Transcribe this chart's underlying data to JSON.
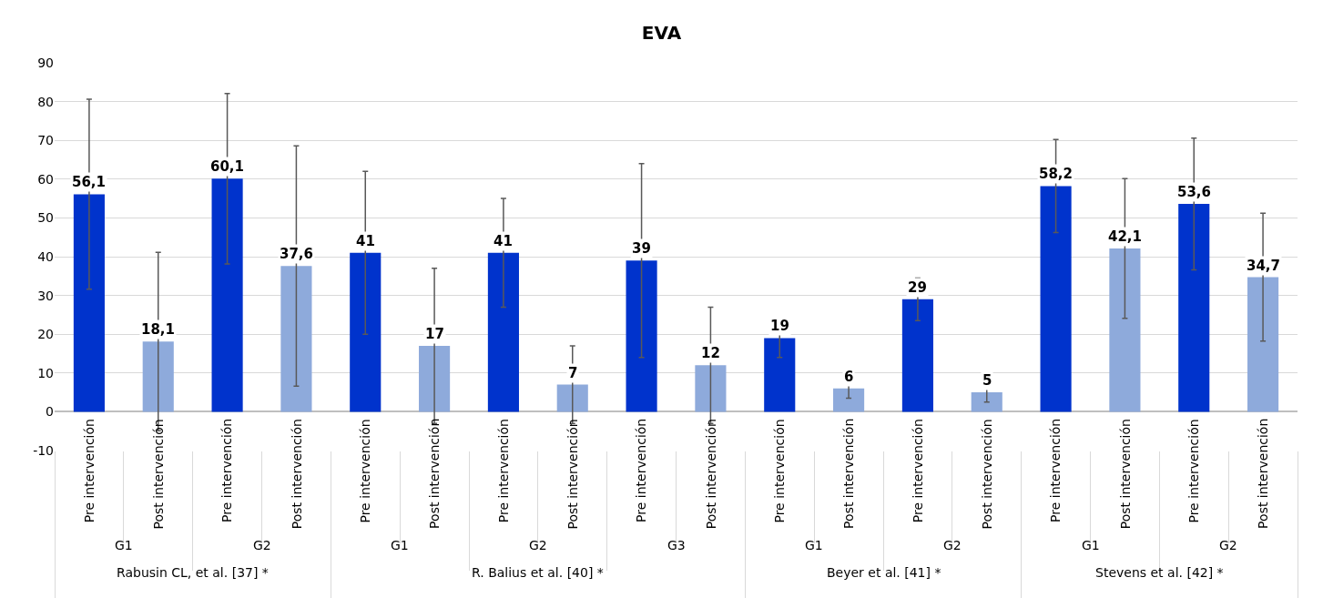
{
  "chart_data": {
    "type": "bar",
    "title": "EVA",
    "categories": [
      "Pre intervención",
      "Post intervención",
      "Pre intervención",
      "Post intervención",
      "Pre intervención",
      "Post intervención",
      "Pre intervención",
      "Post intervención",
      "Pre intervención",
      "Post intervención",
      "Pre intervención",
      "Post intervención",
      "Pre intervención",
      "Post intervención",
      "Pre intervención",
      "Post intervención",
      "Pre intervención",
      "Post intervención"
    ],
    "values": [
      56.1,
      18.1,
      60.1,
      37.6,
      41,
      17,
      41,
      7,
      39,
      12,
      19,
      6,
      29,
      5,
      58.2,
      42.1,
      53.6,
      34.7
    ],
    "value_labels": [
      "56,1",
      "18,1",
      "60,1",
      "37,6",
      "41",
      "17",
      "41",
      "7",
      "39",
      "12",
      "19",
      "6",
      "29",
      "5",
      "58,2",
      "42,1",
      "53,6",
      "34,7"
    ],
    "errors": [
      24.5,
      23,
      22,
      31,
      21,
      20,
      14,
      10,
      25,
      15,
      5,
      2.5,
      5.5,
      2.5,
      12,
      18,
      17,
      16.5
    ],
    "colors": [
      "#0033cc",
      "#8eaadb",
      "#0033cc",
      "#8eaadb",
      "#0033cc",
      "#8eaadb",
      "#0033cc",
      "#8eaadb",
      "#0033cc",
      "#8eaadb",
      "#0033cc",
      "#8eaadb",
      "#0033cc",
      "#8eaadb",
      "#0033cc",
      "#8eaadb",
      "#0033cc",
      "#8eaadb"
    ],
    "ylim": [
      -10,
      90
    ],
    "yticks": [
      -10,
      0,
      10,
      20,
      30,
      40,
      50,
      60,
      70,
      80,
      90
    ],
    "grid": "y",
    "annotations": [
      "G1",
      "G2",
      "G1",
      "G2",
      "G3",
      "G1",
      "G2",
      "G1",
      "G2",
      "Rabusin CL, et al. [37] *",
      "R. Balius et al. [40] *",
      "Beyer et al. [41] *",
      "Stevens et al. [42] *"
    ]
  }
}
